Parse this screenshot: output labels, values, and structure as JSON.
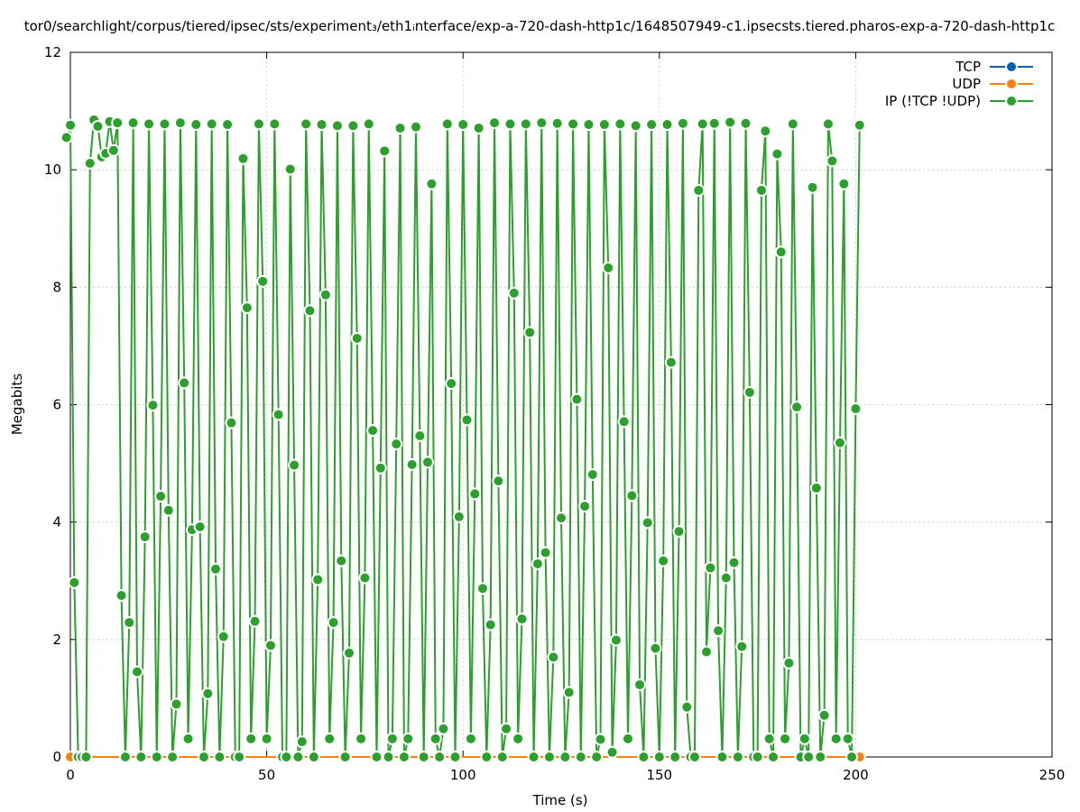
{
  "chart_data": {
    "type": "line",
    "title": "tor0/searchlight/corpus/tiered/ipsec/sts/experiment₃/eth1ᵢnterface/exp-a-720-dash-http1c/1648507949-c1.ipsecsts.tiered.pharos-exp-a-720-dash-http1c",
    "xlabel": "Time (s)",
    "ylabel": "Megabits",
    "xlim": [
      0,
      250
    ],
    "ylim": [
      0,
      12
    ],
    "xticks": [
      0,
      50,
      100,
      150,
      200,
      250
    ],
    "yticks": [
      0,
      2,
      4,
      6,
      8,
      10,
      12
    ],
    "grid": true,
    "legend_position": "top-right",
    "series": [
      {
        "name": "TCP",
        "color": "#0060ad",
        "x": [
          0,
          200
        ],
        "y": [
          0,
          0
        ]
      },
      {
        "name": "UDP",
        "color": "#ff7f0e",
        "x": [
          0,
          201
        ],
        "y": [
          0,
          0
        ]
      },
      {
        "name": "IP (!TCP  !UDP)",
        "color": "#2ca02c",
        "x": [
          -1,
          0,
          1,
          2,
          3,
          4,
          5,
          6,
          7,
          8,
          9,
          10,
          11,
          12,
          13,
          14,
          15,
          16,
          17,
          18,
          19,
          20,
          21,
          22,
          23,
          24,
          25,
          26,
          27,
          28,
          29,
          30,
          31,
          32,
          33,
          34,
          35,
          36,
          37,
          38,
          39,
          40,
          41,
          42,
          43,
          44,
          45,
          46,
          47,
          48,
          49,
          50,
          51,
          52,
          53,
          54,
          55,
          56,
          57,
          58,
          59,
          60,
          61,
          62,
          63,
          64,
          65,
          66,
          67,
          68,
          69,
          70,
          71,
          72,
          73,
          74,
          75,
          76,
          77,
          78,
          79,
          80,
          81,
          82,
          83,
          84,
          85,
          86,
          87,
          88,
          89,
          90,
          91,
          92,
          93,
          94,
          95,
          96,
          97,
          98,
          99,
          100,
          101,
          102,
          103,
          104,
          105,
          106,
          107,
          108,
          109,
          110,
          111,
          112,
          113,
          114,
          115,
          116,
          117,
          118,
          119,
          120,
          121,
          122,
          123,
          124,
          125,
          126,
          127,
          128,
          129,
          130,
          131,
          132,
          133,
          134,
          135,
          136,
          137,
          138,
          139,
          140,
          141,
          142,
          143,
          144,
          145,
          146,
          147,
          148,
          149,
          150,
          151,
          152,
          153,
          154,
          155,
          156,
          157,
          158,
          159,
          160,
          161,
          162,
          163,
          164,
          165,
          166,
          167,
          168,
          169,
          170,
          171,
          172,
          173,
          174,
          175,
          176,
          177,
          178,
          179,
          180,
          181,
          182,
          183,
          184,
          185,
          186,
          187,
          188,
          189,
          190,
          191,
          192,
          193,
          194,
          195,
          196,
          197,
          198,
          199,
          200,
          201
        ],
        "y": [
          10.55,
          10.76,
          2.97,
          0,
          0,
          0,
          10.11,
          10.85,
          10.74,
          10.22,
          10.28,
          10.82,
          10.33,
          10.8,
          2.75,
          0,
          2.29,
          10.8,
          1.45,
          0,
          3.75,
          10.78,
          5.99,
          0,
          4.44,
          10.78,
          4.2,
          0,
          0.9,
          10.8,
          6.37,
          0.31,
          3.87,
          10.77,
          3.92,
          0,
          1.08,
          10.78,
          3.2,
          0,
          2.05,
          10.77,
          5.69,
          0,
          0,
          10.19,
          7.65,
          0.31,
          2.31,
          10.78,
          8.1,
          0.31,
          1.9,
          10.78,
          5.83,
          0,
          0,
          10.01,
          4.97,
          0,
          0.26,
          10.78,
          7.6,
          0,
          3.02,
          10.77,
          7.87,
          0.31,
          2.29,
          10.75,
          3.34,
          0,
          1.77,
          10.75,
          7.13,
          0.31,
          3.05,
          10.78,
          5.56,
          0,
          4.92,
          10.32,
          0,
          0.31,
          5.33,
          10.71,
          0,
          0.31,
          4.98,
          10.73,
          5.47,
          0,
          5.02,
          9.76,
          0.31,
          0,
          0.48,
          10.78,
          6.36,
          0,
          4.09,
          10.77,
          5.74,
          0.31,
          4.48,
          10.71,
          2.87,
          0,
          2.25,
          10.8,
          4.7,
          0,
          0.48,
          10.78,
          7.9,
          0.31,
          2.35,
          10.78,
          7.23,
          0,
          3.29,
          10.8,
          3.48,
          0,
          1.7,
          10.79,
          4.07,
          0,
          1.1,
          10.78,
          6.09,
          0,
          4.27,
          10.77,
          4.81,
          0,
          0.3,
          10.77,
          8.33,
          0.08,
          1.99,
          10.78,
          5.71,
          0.31,
          4.45,
          10.75,
          1.23,
          0,
          3.99,
          10.77,
          1.85,
          0,
          3.34,
          10.77,
          6.72,
          0,
          3.84,
          10.79,
          0.85,
          0,
          0,
          9.65,
          10.78,
          1.79,
          3.22,
          10.79,
          2.15,
          0,
          3.05,
          10.81,
          3.31,
          0,
          1.88,
          10.79,
          6.21,
          0,
          0,
          9.65,
          10.66,
          0.31,
          0,
          10.27,
          8.6,
          0.31,
          1.6,
          10.78,
          5.96,
          0,
          0.31,
          0,
          9.7,
          4.58,
          0,
          0.71,
          10.78,
          10.15,
          0.31,
          5.35,
          9.76,
          0.31,
          0,
          5.93,
          10.76
        ]
      }
    ]
  }
}
